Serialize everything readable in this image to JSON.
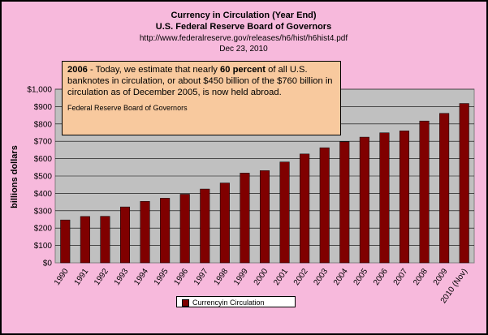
{
  "chart_data": {
    "type": "bar",
    "title": "Currency in Circulation (Year End)",
    "subtitle": "U.S. Federal Reserve Board of Governors",
    "source_url": "http://www.federalreserve.gov/releases/h6/hist/h6hist4.pdf",
    "date": "Dec 23, 2010",
    "ylabel": "billions dollars",
    "xlabel": "",
    "ylim": [
      0,
      1000
    ],
    "yticks": [
      "$0",
      "$100",
      "$200",
      "$300",
      "$400",
      "$500",
      "$600",
      "$700",
      "$800",
      "$900",
      "$1,000"
    ],
    "categories": [
      "1990",
      "1991",
      "1992",
      "1993",
      "1994",
      "1995",
      "1996",
      "1997",
      "1998",
      "1999",
      "2000",
      "2001",
      "2002",
      "2003",
      "2004",
      "2005",
      "2006",
      "2007",
      "2008",
      "2009",
      "2010 (Nov)"
    ],
    "series": [
      {
        "name": "Currencyin Circulation",
        "values": [
          247,
          267,
          268,
          322,
          354,
          372,
          395,
          425,
          460,
          517,
          531,
          581,
          627,
          663,
          697,
          724,
          749,
          760,
          817,
          861,
          918
        ]
      }
    ],
    "legend_position": "bottom",
    "grid": true,
    "colors": {
      "bar": "#800000",
      "plot_bg": "#c0c0c0",
      "outer_bg": "#f7b9dc",
      "callout_bg": "#f8c99e"
    }
  },
  "callout": {
    "year": "2006",
    "text_a": " - Today, we estimate that nearly ",
    "bold": "60 percent",
    "text_b": " of all U.S. banknotes in circulation, or about $450 billion of the $760 billion in circulation as of December 2005, is now held abroad.",
    "source": "Federal Reserve Board of Governors"
  }
}
